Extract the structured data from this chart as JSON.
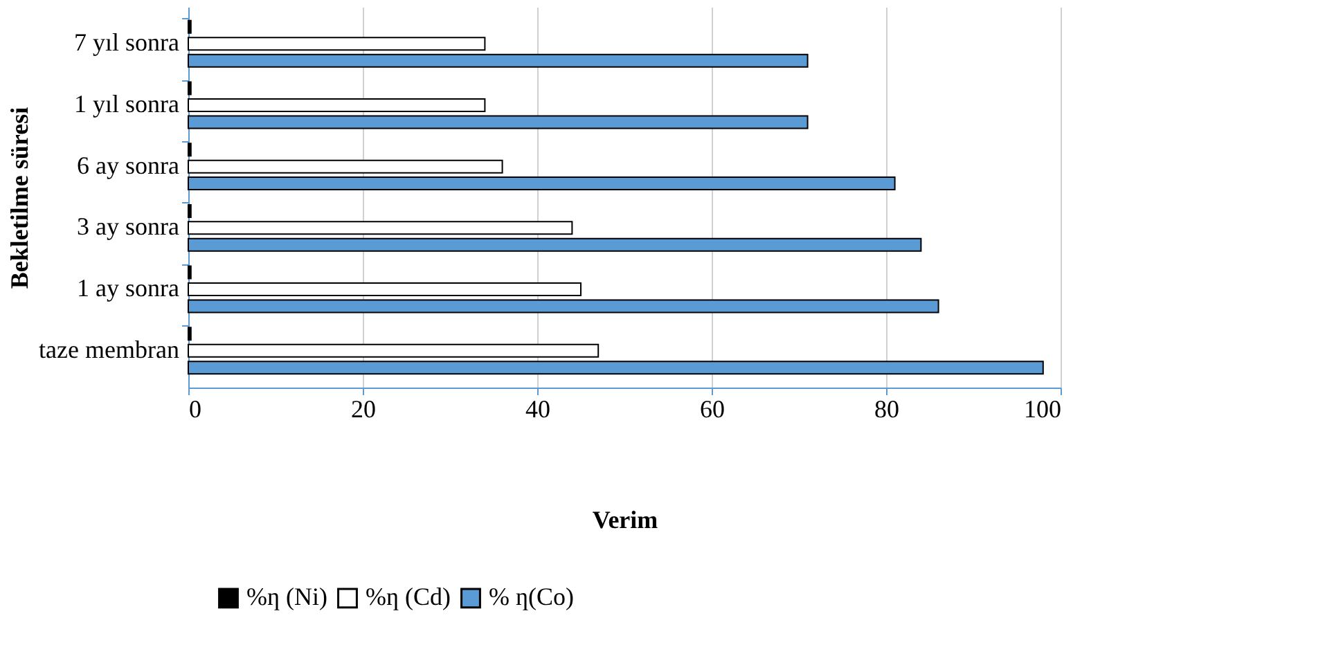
{
  "chart_data": {
    "type": "bar",
    "orientation": "horizontal",
    "xlabel": "Verim",
    "ylabel": "Bekletilme süresi",
    "categories": [
      "7 yıl sonra",
      "1 yıl sonra",
      "6 ay sonra",
      "3 ay sonra",
      "1 ay sonra",
      "taze membran"
    ],
    "series": [
      {
        "name": "%ƞ (Ni)",
        "color": "#000000",
        "values": [
          0.3,
          0.3,
          0.3,
          0.3,
          0.3,
          0.3
        ]
      },
      {
        "name": "%ƞ (Cd)",
        "color": "#ffffff",
        "values": [
          34,
          34,
          36,
          44,
          45,
          47
        ]
      },
      {
        "name": "% ƞ(Co)",
        "color": "#5b9bd5",
        "values": [
          71,
          71,
          81,
          84,
          86,
          98
        ]
      }
    ],
    "xlim": [
      0,
      100
    ],
    "xticks": [
      0,
      20,
      40,
      60,
      80,
      100
    ],
    "grid": "x",
    "legend": "bottom"
  }
}
